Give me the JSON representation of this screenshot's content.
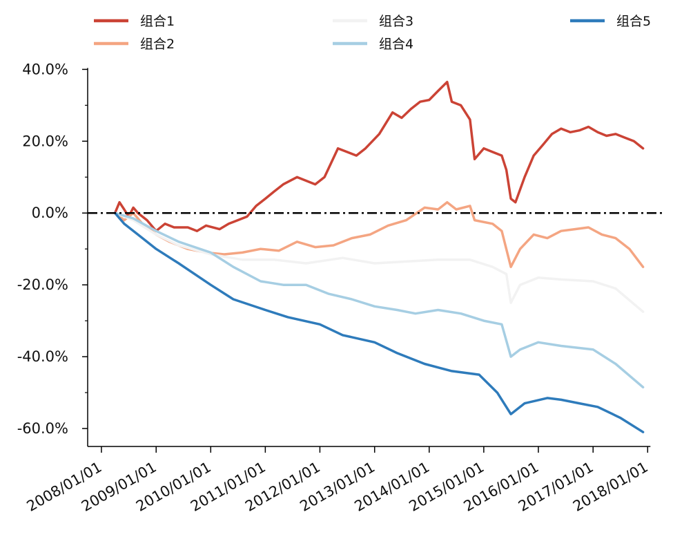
{
  "chart_data": {
    "type": "line",
    "title": "",
    "xlabel": "",
    "ylabel": "",
    "ylim": [
      -0.65,
      0.42
    ],
    "xlim": [
      "2007/10/01",
      "2018/02/01"
    ],
    "y_ticks": [
      0.4,
      0.2,
      0.0,
      -0.2,
      -0.4,
      -0.6
    ],
    "y_tick_labels": [
      "40.0%",
      "20.0%",
      "0.0%",
      "-20.0%",
      "-40.0%",
      "-60.0%"
    ],
    "x_ticks": [
      "2008/01/01",
      "2009/01/01",
      "2010/01/01",
      "2011/01/01",
      "2012/01/01",
      "2013/01/01",
      "2014/01/01",
      "2015/01/01",
      "2016/01/01",
      "2017/01/01",
      "2018/01/01"
    ],
    "x_tick_labels": [
      "2008/01/01",
      "2009/01/01",
      "2010/01/01",
      "2011/01/01",
      "2012/01/01",
      "2013/01/01",
      "2014/01/01",
      "2015/01/01",
      "2016/01/01",
      "2017/01/01",
      "2018/01/01"
    ],
    "reference_line": {
      "y": 0.0,
      "style": "dash-dot",
      "color": "#000000"
    },
    "legend": {
      "position": "top",
      "columns": 3
    },
    "grid": false,
    "series": [
      {
        "name": "组合1",
        "color": "#cb4335",
        "points": [
          [
            "2008/04/01",
            0.0
          ],
          [
            "2008/05/01",
            0.03
          ],
          [
            "2008/06/01",
            0.01
          ],
          [
            "2008/07/01",
            -0.01
          ],
          [
            "2008/08/01",
            0.015
          ],
          [
            "2008/09/01",
            0.0
          ],
          [
            "2008/11/01",
            -0.02
          ],
          [
            "2009/01/01",
            -0.05
          ],
          [
            "2009/03/01",
            -0.03
          ],
          [
            "2009/05/01",
            -0.04
          ],
          [
            "2009/08/01",
            -0.04
          ],
          [
            "2009/10/01",
            -0.05
          ],
          [
            "2009/12/01",
            -0.035
          ],
          [
            "2010/03/01",
            -0.045
          ],
          [
            "2010/05/01",
            -0.03
          ],
          [
            "2010/07/01",
            -0.02
          ],
          [
            "2010/09/01",
            -0.01
          ],
          [
            "2010/11/01",
            0.02
          ],
          [
            "2011/01/01",
            0.04
          ],
          [
            "2011/03/01",
            0.06
          ],
          [
            "2011/05/01",
            0.08
          ],
          [
            "2011/08/01",
            0.1
          ],
          [
            "2011/10/01",
            0.09
          ],
          [
            "2011/12/01",
            0.08
          ],
          [
            "2012/02/01",
            0.1
          ],
          [
            "2012/05/01",
            0.18
          ],
          [
            "2012/07/01",
            0.17
          ],
          [
            "2012/09/01",
            0.16
          ],
          [
            "2012/11/01",
            0.18
          ],
          [
            "2013/02/01",
            0.22
          ],
          [
            "2013/05/01",
            0.28
          ],
          [
            "2013/07/01",
            0.265
          ],
          [
            "2013/09/01",
            0.29
          ],
          [
            "2013/11/01",
            0.31
          ],
          [
            "2014/01/01",
            0.315
          ],
          [
            "2014/03/01",
            0.34
          ],
          [
            "2014/05/01",
            0.365
          ],
          [
            "2014/06/01",
            0.31
          ],
          [
            "2014/08/01",
            0.3
          ],
          [
            "2014/10/01",
            0.26
          ],
          [
            "2014/11/01",
            0.15
          ],
          [
            "2015/01/01",
            0.18
          ],
          [
            "2015/03/01",
            0.17
          ],
          [
            "2015/05/01",
            0.16
          ],
          [
            "2015/06/01",
            0.12
          ],
          [
            "2015/07/01",
            0.04
          ],
          [
            "2015/08/01",
            0.03
          ],
          [
            "2015/10/01",
            0.1
          ],
          [
            "2015/12/01",
            0.16
          ],
          [
            "2016/02/01",
            0.19
          ],
          [
            "2016/04/01",
            0.22
          ],
          [
            "2016/06/01",
            0.235
          ],
          [
            "2016/08/01",
            0.225
          ],
          [
            "2016/10/01",
            0.23
          ],
          [
            "2016/12/01",
            0.24
          ],
          [
            "2017/02/01",
            0.225
          ],
          [
            "2017/04/01",
            0.215
          ],
          [
            "2017/06/01",
            0.22
          ],
          [
            "2017/08/01",
            0.21
          ],
          [
            "2017/10/01",
            0.2
          ],
          [
            "2017/12/01",
            0.18
          ]
        ]
      },
      {
        "name": "组合2",
        "color": "#f4a582",
        "points": [
          [
            "2008/04/01",
            0.0
          ],
          [
            "2008/06/01",
            -0.02
          ],
          [
            "2008/08/01",
            0.0
          ],
          [
            "2008/10/01",
            -0.03
          ],
          [
            "2009/01/01",
            -0.06
          ],
          [
            "2009/04/01",
            -0.08
          ],
          [
            "2009/08/01",
            -0.1
          ],
          [
            "2009/12/01",
            -0.11
          ],
          [
            "2010/04/01",
            -0.115
          ],
          [
            "2010/08/01",
            -0.11
          ],
          [
            "2010/12/01",
            -0.1
          ],
          [
            "2011/04/01",
            -0.105
          ],
          [
            "2011/08/01",
            -0.08
          ],
          [
            "2011/12/01",
            -0.095
          ],
          [
            "2012/04/01",
            -0.09
          ],
          [
            "2012/08/01",
            -0.07
          ],
          [
            "2012/12/01",
            -0.06
          ],
          [
            "2013/04/01",
            -0.035
          ],
          [
            "2013/08/01",
            -0.02
          ],
          [
            "2013/12/01",
            0.015
          ],
          [
            "2014/03/01",
            0.01
          ],
          [
            "2014/05/01",
            0.03
          ],
          [
            "2014/07/01",
            0.01
          ],
          [
            "2014/10/01",
            0.02
          ],
          [
            "2014/11/01",
            -0.02
          ],
          [
            "2015/03/01",
            -0.03
          ],
          [
            "2015/05/01",
            -0.05
          ],
          [
            "2015/07/01",
            -0.15
          ],
          [
            "2015/09/01",
            -0.1
          ],
          [
            "2015/12/01",
            -0.06
          ],
          [
            "2016/03/01",
            -0.07
          ],
          [
            "2016/06/01",
            -0.05
          ],
          [
            "2016/09/01",
            -0.045
          ],
          [
            "2016/12/01",
            -0.04
          ],
          [
            "2017/03/01",
            -0.06
          ],
          [
            "2017/06/01",
            -0.07
          ],
          [
            "2017/09/01",
            -0.1
          ],
          [
            "2017/12/01",
            -0.15
          ]
        ]
      },
      {
        "name": "组合3",
        "color": "#f2f2f2",
        "points": [
          [
            "2008/04/01",
            0.0
          ],
          [
            "2008/08/01",
            -0.02
          ],
          [
            "2009/01/01",
            -0.06
          ],
          [
            "2009/06/01",
            -0.09
          ],
          [
            "2010/01/01",
            -0.115
          ],
          [
            "2010/08/01",
            -0.13
          ],
          [
            "2011/03/01",
            -0.13
          ],
          [
            "2011/10/01",
            -0.14
          ],
          [
            "2012/06/01",
            -0.125
          ],
          [
            "2013/01/01",
            -0.14
          ],
          [
            "2013/08/01",
            -0.135
          ],
          [
            "2014/03/01",
            -0.13
          ],
          [
            "2014/10/01",
            -0.13
          ],
          [
            "2015/03/01",
            -0.15
          ],
          [
            "2015/06/01",
            -0.17
          ],
          [
            "2015/07/01",
            -0.25
          ],
          [
            "2015/09/01",
            -0.2
          ],
          [
            "2016/01/01",
            -0.18
          ],
          [
            "2016/06/01",
            -0.185
          ],
          [
            "2017/01/01",
            -0.19
          ],
          [
            "2017/06/01",
            -0.21
          ],
          [
            "2017/12/01",
            -0.275
          ]
        ]
      },
      {
        "name": "组合4",
        "color": "#a6cee3",
        "points": [
          [
            "2008/04/01",
            0.0
          ],
          [
            "2008/08/01",
            -0.015
          ],
          [
            "2009/01/01",
            -0.05
          ],
          [
            "2009/06/01",
            -0.08
          ],
          [
            "2010/01/01",
            -0.11
          ],
          [
            "2010/06/01",
            -0.15
          ],
          [
            "2010/12/01",
            -0.19
          ],
          [
            "2011/05/01",
            -0.2
          ],
          [
            "2011/10/01",
            -0.2
          ],
          [
            "2012/03/01",
            -0.225
          ],
          [
            "2012/08/01",
            -0.24
          ],
          [
            "2013/01/01",
            -0.26
          ],
          [
            "2013/06/01",
            -0.27
          ],
          [
            "2013/10/01",
            -0.28
          ],
          [
            "2014/03/01",
            -0.27
          ],
          [
            "2014/08/01",
            -0.28
          ],
          [
            "2015/01/01",
            -0.3
          ],
          [
            "2015/05/01",
            -0.31
          ],
          [
            "2015/07/01",
            -0.4
          ],
          [
            "2015/09/01",
            -0.38
          ],
          [
            "2016/01/01",
            -0.36
          ],
          [
            "2016/06/01",
            -0.37
          ],
          [
            "2017/01/01",
            -0.38
          ],
          [
            "2017/06/01",
            -0.42
          ],
          [
            "2017/12/01",
            -0.485
          ]
        ]
      },
      {
        "name": "组合5",
        "color": "#2e7bbb",
        "points": [
          [
            "2008/04/01",
            0.0
          ],
          [
            "2008/06/01",
            -0.03
          ],
          [
            "2008/09/01",
            -0.06
          ],
          [
            "2009/01/01",
            -0.1
          ],
          [
            "2009/06/01",
            -0.14
          ],
          [
            "2010/01/01",
            -0.2
          ],
          [
            "2010/06/01",
            -0.24
          ],
          [
            "2011/01/01",
            -0.27
          ],
          [
            "2011/06/01",
            -0.29
          ],
          [
            "2012/01/01",
            -0.31
          ],
          [
            "2012/06/01",
            -0.34
          ],
          [
            "2013/01/01",
            -0.36
          ],
          [
            "2013/06/01",
            -0.39
          ],
          [
            "2013/12/01",
            -0.42
          ],
          [
            "2014/06/01",
            -0.44
          ],
          [
            "2014/12/01",
            -0.45
          ],
          [
            "2015/04/01",
            -0.5
          ],
          [
            "2015/07/01",
            -0.56
          ],
          [
            "2015/10/01",
            -0.53
          ],
          [
            "2016/03/01",
            -0.515
          ],
          [
            "2016/06/01",
            -0.52
          ],
          [
            "2016/10/01",
            -0.53
          ],
          [
            "2017/02/01",
            -0.54
          ],
          [
            "2017/07/01",
            -0.57
          ],
          [
            "2017/12/01",
            -0.61
          ]
        ]
      }
    ]
  }
}
